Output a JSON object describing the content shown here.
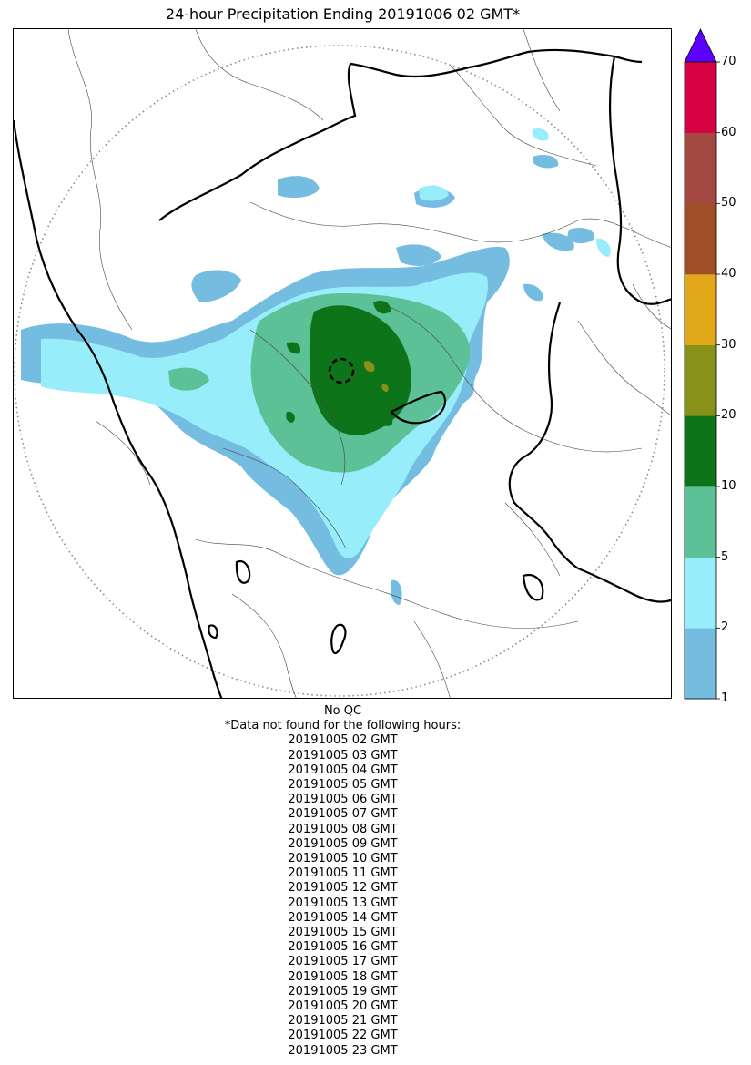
{
  "title": "24-hour Precipitation Ending 20191006 02 GMT*",
  "legend": {
    "ticks": [
      "1",
      "2",
      "5",
      "10",
      "20",
      "30",
      "40",
      "50",
      "60",
      "70"
    ],
    "colors": [
      "#74bde0",
      "#98edfb",
      "#5cc197",
      "#0e7419",
      "#899218",
      "#e3a819",
      "#9f4f28",
      "#a44942",
      "#d60043"
    ],
    "extend_color": "#5b00ff"
  },
  "footer": {
    "qc": "No QC",
    "missing_header": "*Data not found for the following hours:",
    "missing_hours": [
      "20191005 02 GMT",
      "20191005 03 GMT",
      "20191005 04 GMT",
      "20191005 05 GMT",
      "20191005 06 GMT",
      "20191005 07 GMT",
      "20191005 08 GMT",
      "20191005 09 GMT",
      "20191005 10 GMT",
      "20191005 11 GMT",
      "20191005 12 GMT",
      "20191005 13 GMT",
      "20191005 14 GMT",
      "20191005 15 GMT",
      "20191005 16 GMT",
      "20191005 17 GMT",
      "20191005 18 GMT",
      "20191005 19 GMT",
      "20191005 20 GMT",
      "20191005 21 GMT",
      "20191005 22 GMT",
      "20191005 23 GMT"
    ]
  }
}
